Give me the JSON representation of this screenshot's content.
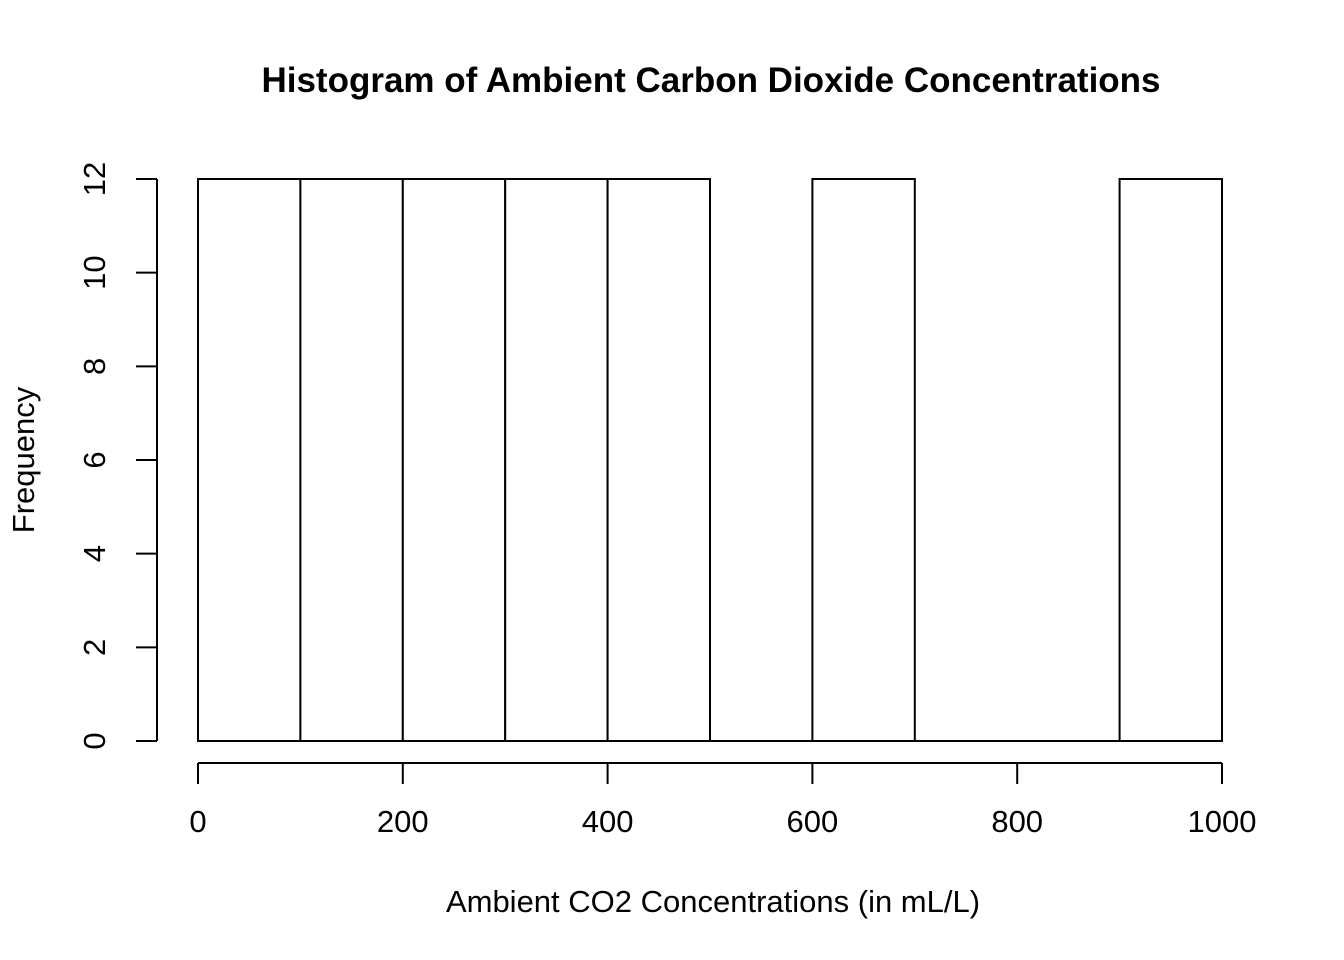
{
  "chart_data": {
    "type": "bar",
    "subtype": "histogram",
    "title": "Histogram of Ambient Carbon Dioxide Concentrations",
    "xlabel": "Ambient CO2 Concentrations (in mL/L)",
    "ylabel": "Frequency",
    "bin_edges": [
      0,
      100,
      200,
      300,
      400,
      500,
      600,
      700,
      800,
      900,
      1000
    ],
    "counts": [
      12,
      12,
      12,
      12,
      12,
      0,
      12,
      0,
      0,
      12
    ],
    "x_ticks": [
      0,
      200,
      400,
      600,
      800,
      1000
    ],
    "y_ticks": [
      0,
      2,
      4,
      6,
      8,
      10,
      12
    ],
    "xlim": [
      0,
      1000
    ],
    "ylim": [
      0,
      12
    ],
    "grid": false,
    "legend": "none",
    "bar_fill": "#ffffff",
    "bar_stroke": "#000000",
    "axis_color": "#000000",
    "background": "#ffffff"
  }
}
